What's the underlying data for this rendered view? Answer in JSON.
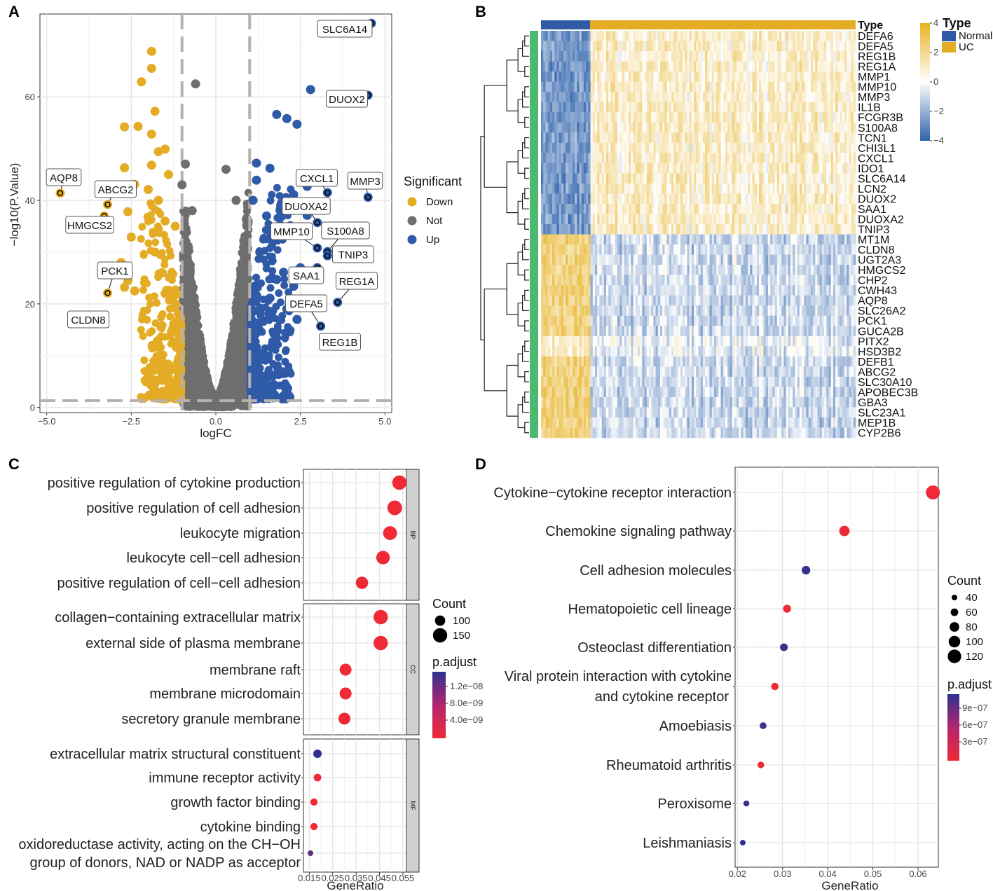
{
  "panels": {
    "a": "A",
    "b": "B",
    "c": "C",
    "d": "D"
  },
  "colors": {
    "down": "#E3AC24",
    "not": "#6E6E6E",
    "up": "#2F5AA8",
    "sig_high": "#EE2A36",
    "sig_low": "#2E3191",
    "heat_high": "#E7B325",
    "heat_low": "#2F63AC",
    "row_side": "#4DB86F"
  },
  "chart_data": [
    {
      "id": "volcano",
      "type": "scatter",
      "xlabel": "logFC",
      "ylabel": "−log10(P.Value)",
      "xlim": [
        -5.2,
        5.2
      ],
      "ylim": [
        -1,
        76
      ],
      "xticks": [
        -5,
        -2.5,
        0,
        2.5,
        5
      ],
      "xtick_labels": [
        "−5.0",
        "−2.5",
        "0.0",
        "2.5",
        "5.0"
      ],
      "yticks": [
        0,
        20,
        40,
        60
      ],
      "ylines": [
        1.3
      ],
      "xlines": [
        -1,
        1
      ],
      "legend_title": "Significant",
      "legend": [
        "Down",
        "Not",
        "Up"
      ],
      "labeled_points": [
        {
          "gene": "SLC6A14",
          "x": 4.6,
          "y": 74.2,
          "group": "up"
        },
        {
          "gene": "DUOX2",
          "x": 4.5,
          "y": 60.3,
          "group": "up"
        },
        {
          "gene": "CXCL1",
          "x": 3.3,
          "y": 41.5,
          "group": "up"
        },
        {
          "gene": "MMP3",
          "x": 4.5,
          "y": 40.6,
          "group": "up"
        },
        {
          "gene": "DUOXA2",
          "x": 3.0,
          "y": 35.7,
          "group": "up"
        },
        {
          "gene": "MMP10",
          "x": 3.0,
          "y": 30.8,
          "group": "up"
        },
        {
          "gene": "S100A8",
          "x": 3.3,
          "y": 30.1,
          "group": "up"
        },
        {
          "gene": "TNIP3",
          "x": 3.3,
          "y": 29.3,
          "group": "up"
        },
        {
          "gene": "SAA1",
          "x": 3.0,
          "y": 27.0,
          "group": "up"
        },
        {
          "gene": "REG1A",
          "x": 3.6,
          "y": 20.3,
          "group": "up"
        },
        {
          "gene": "DEFA5",
          "x": 3.1,
          "y": 15.7,
          "group": "up"
        },
        {
          "gene": "REG1B",
          "x": 3.3,
          "y": 13.1,
          "group": "up"
        },
        {
          "gene": "AQP8",
          "x": -4.6,
          "y": 41.4,
          "group": "down"
        },
        {
          "gene": "ABCG2",
          "x": -3.2,
          "y": 39.2,
          "group": "down"
        },
        {
          "gene": "HMGCS2",
          "x": -3.3,
          "y": 37.0,
          "group": "down"
        },
        {
          "gene": "PCK1",
          "x": -3.2,
          "y": 22.1,
          "group": "down"
        },
        {
          "gene": "CLDN8",
          "x": -3.4,
          "y": 17.6,
          "group": "down"
        }
      ],
      "extra_points": {
        "down": [
          [
            -1.9,
            68.8
          ],
          [
            -2.2,
            62.9
          ],
          [
            -1.9,
            65.5
          ],
          [
            -2.3,
            54.3
          ],
          [
            -1.8,
            57.2
          ],
          [
            -1.9,
            52.8
          ],
          [
            -2.7,
            54.2
          ],
          [
            -1.7,
            49.4
          ],
          [
            -1.5,
            49.9
          ],
          [
            -2.7,
            46.3
          ],
          [
            -1.9,
            46.8
          ],
          [
            -2.0,
            42.1
          ],
          [
            -2.4,
            43.1
          ],
          [
            -2.6,
            37.8
          ],
          [
            -2.5,
            32.9
          ],
          [
            -2.8,
            28.0
          ],
          [
            -2.7,
            23.2
          ],
          [
            -2.6,
            24.5
          ],
          [
            -2.4,
            22.5
          ],
          [
            -1.7,
            12.3
          ],
          [
            -1.6,
            8.3
          ],
          [
            -1.4,
            5.5
          ],
          [
            -1.4,
            3.7
          ],
          [
            -1.3,
            2.4
          ],
          [
            -1.5,
            22.0
          ],
          [
            -1.8,
            30.0
          ],
          [
            -1.6,
            26.0
          ],
          [
            -1.7,
            40.0
          ],
          [
            -1.4,
            45.0
          ],
          [
            -1.2,
            35.0
          ],
          [
            -1.5,
            36.0
          ]
        ],
        "up": [
          [
            2.8,
            61.4
          ],
          [
            1.8,
            56.6
          ],
          [
            2.1,
            55.8
          ],
          [
            2.4,
            54.7
          ],
          [
            1.2,
            47.2
          ],
          [
            1.2,
            43.9
          ],
          [
            1.6,
            46.2
          ],
          [
            2.3,
            41.1
          ],
          [
            2.7,
            42.7
          ],
          [
            2.7,
            37.1
          ],
          [
            1.9,
            38.0
          ],
          [
            2.2,
            35.1
          ],
          [
            2.6,
            33.3
          ],
          [
            2.0,
            33.6
          ],
          [
            2.5,
            27.0
          ],
          [
            2.0,
            26.1
          ],
          [
            2.1,
            19.0
          ],
          [
            2.3,
            23.4
          ],
          [
            1.4,
            16.8
          ],
          [
            1.2,
            11.6
          ],
          [
            1.6,
            21.1
          ],
          [
            1.8,
            24.7
          ],
          [
            1.3,
            30.0
          ],
          [
            1.5,
            37.0
          ],
          [
            1.1,
            40.0
          ],
          [
            2.4,
            17.0
          ]
        ],
        "not": [
          [
            -0.9,
            47.0
          ],
          [
            -1.0,
            43.0
          ],
          [
            -0.6,
            62.5
          ],
          [
            0.3,
            46.0
          ],
          [
            -0.7,
            38.0
          ],
          [
            0.6,
            40.0
          ]
        ]
      }
    },
    {
      "id": "heatmap",
      "type": "heatmap",
      "annotation_label": "Type",
      "legend_title": "Type",
      "groups": [
        "Normal",
        "UC"
      ],
      "scale_ticks": [
        "4",
        "2",
        "0",
        "−2",
        "−4"
      ],
      "scale_values": [
        4,
        2,
        0,
        -2,
        -4
      ],
      "genes": [
        "DEFA6",
        "DEFA5",
        "REG1B",
        "REG1A",
        "MMP1",
        "MMP10",
        "MMP3",
        "IL1B",
        "FCGR3B",
        "S100A8",
        "TCN1",
        "CHI3L1",
        "CXCL1",
        "IDO1",
        "SLC6A14",
        "LCN2",
        "DUOX2",
        "SAA1",
        "DUOXA2",
        "TNIP3",
        "MT1M",
        "CLDN8",
        "UGT2A3",
        "HMGCS2",
        "CHP2",
        "CWH43",
        "AQP8",
        "SLC26A2",
        "PCK1",
        "GUCA2B",
        "PITX2",
        "HSD3B2",
        "DEFB1",
        "ABCG2",
        "SLC30A10",
        "APOBEC3B",
        "GBA3",
        "SLC23A1",
        "MEP1B",
        "CYP2B6"
      ],
      "up_gene_count": 20
    },
    {
      "id": "go",
      "type": "scatter",
      "xlabel": "GeneRatio",
      "xlim": [
        0.0125,
        0.0565
      ],
      "xticks": [
        0.015,
        0.025,
        0.035,
        0.045,
        0.055
      ],
      "xtick_labels": [
        "0.015",
        "0.025",
        "0.035",
        "0.045",
        "0.055"
      ],
      "facets": [
        {
          "name": "BP",
          "terms": [
            {
              "term": "positive regulation of cytokine production",
              "ratio": 0.0535,
              "count": 150,
              "padj": 1e-11
            },
            {
              "term": "positive regulation of cell adhesion",
              "ratio": 0.0515,
              "count": 155,
              "padj": 1e-11
            },
            {
              "term": "leukocyte migration",
              "ratio": 0.0495,
              "count": 145,
              "padj": 1e-11
            },
            {
              "term": "leukocyte cell−cell adhesion",
              "ratio": 0.0465,
              "count": 140,
              "padj": 1e-11
            },
            {
              "term": "positive regulation of cell−cell adhesion",
              "ratio": 0.0375,
              "count": 125,
              "padj": 1e-11
            }
          ]
        },
        {
          "name": "CC",
          "terms": [
            {
              "term": "collagen−containing extracellular matrix",
              "ratio": 0.0455,
              "count": 150,
              "padj": 1e-11
            },
            {
              "term": "external side of plasma membrane",
              "ratio": 0.0455,
              "count": 150,
              "padj": 1e-11
            },
            {
              "term": "membrane raft",
              "ratio": 0.0305,
              "count": 120,
              "padj": 1e-11
            },
            {
              "term": "membrane microdomain",
              "ratio": 0.0305,
              "count": 120,
              "padj": 1e-11
            },
            {
              "term": "secretory granule membrane",
              "ratio": 0.03,
              "count": 120,
              "padj": 1e-11
            }
          ]
        },
        {
          "name": "MF",
          "terms": [
            {
              "term": "extracellular matrix structural constituent",
              "ratio": 0.0185,
              "count": 75,
              "padj": 1.5e-08
            },
            {
              "term": "immune receptor activity",
              "ratio": 0.0185,
              "count": 65,
              "padj": 1e-11
            },
            {
              "term": "growth factor binding",
              "ratio": 0.017,
              "count": 60,
              "padj": 1e-11
            },
            {
              "term": "cytokine binding",
              "ratio": 0.017,
              "count": 60,
              "padj": 1e-11
            },
            {
              "term": "oxidoreductase activity, acting on the CH−OH group of donors, NAD or NADP as acceptor",
              "label_lines": [
                "oxidoreductase activity, acting on the CH−OH",
                "group of donors, NAD or NADP as acceptor"
              ],
              "ratio": 0.0155,
              "count": 40,
              "padj": 1.1e-08
            }
          ]
        }
      ],
      "size_legend_title": "Count",
      "size_legend": [
        {
          "label": "100",
          "value": 100
        },
        {
          "label": "150",
          "value": 150
        }
      ],
      "color_legend_title": "p.adjust",
      "color_legend_ticks": [
        "1.2e−08",
        "8.0e−09",
        "4.0e−09"
      ]
    },
    {
      "id": "kegg",
      "type": "scatter",
      "xlabel": "GeneRatio",
      "xlim": [
        0.0195,
        0.0645
      ],
      "xticks": [
        0.02,
        0.03,
        0.04,
        0.05,
        0.06
      ],
      "xtick_labels": [
        "0.02",
        "0.03",
        "0.04",
        "0.05",
        "0.06"
      ],
      "terms": [
        {
          "term": "Cytokine−cytokine receptor interaction",
          "ratio": 0.0633,
          "count": 125,
          "padj": 1e-08
        },
        {
          "term": "Chemokine signaling pathway",
          "ratio": 0.0437,
          "count": 88,
          "padj": 1e-08
        },
        {
          "term": "Cell adhesion molecules",
          "ratio": 0.0352,
          "count": 70,
          "padj": 1.1e-06
        },
        {
          "term": "Hematopoietic cell lineage",
          "ratio": 0.031,
          "count": 64,
          "padj": 1e-08
        },
        {
          "term": "Osteoclast differentiation",
          "ratio": 0.0303,
          "count": 62,
          "padj": 1.05e-06
        },
        {
          "term": "Viral protein interaction with cytokine and cytokine receptor",
          "label_lines": [
            "Viral protein interaction with cytokine",
            "and cytokine receptor"
          ],
          "ratio": 0.0283,
          "count": 58,
          "padj": 1e-08
        },
        {
          "term": "Amoebiasis",
          "ratio": 0.0257,
          "count": 52,
          "padj": 1.05e-06
        },
        {
          "term": "Rheumatoid arthritis",
          "ratio": 0.0252,
          "count": 50,
          "padj": 1e-08
        },
        {
          "term": "Peroxisome",
          "ratio": 0.022,
          "count": 44,
          "padj": 1.1e-06
        },
        {
          "term": "Leishmaniasis",
          "ratio": 0.0212,
          "count": 40,
          "padj": 1.15e-06
        }
      ],
      "size_legend_title": "Count",
      "size_legend": [
        {
          "label": "40",
          "value": 40
        },
        {
          "label": "60",
          "value": 60
        },
        {
          "label": "80",
          "value": 80
        },
        {
          "label": "100",
          "value": 100
        },
        {
          "label": "120",
          "value": 120
        }
      ],
      "color_legend_title": "p.adjust",
      "color_legend_ticks": [
        "9e−07",
        "6e−07",
        "3e−07"
      ]
    }
  ]
}
